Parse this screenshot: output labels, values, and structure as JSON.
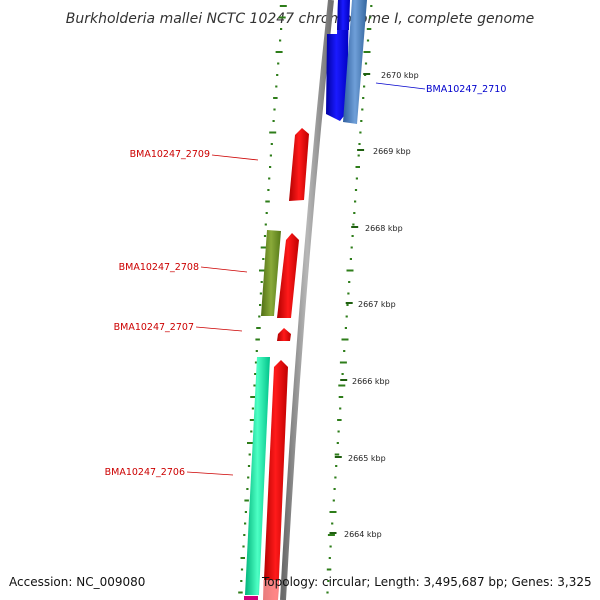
{
  "title": "Burkholderia mallei NCTC 10247 chromosome I, complete genome",
  "accession": "Accession: NC_009080",
  "summary": "Topology: circular; Length: 3,495,687 bp; Genes: 3,325",
  "ticks": [
    "2670 kbp",
    "2669 kbp",
    "2668 kbp",
    "2667 kbp",
    "2666 kbp",
    "2665 kbp",
    "2664 kbp"
  ],
  "genes": [
    {
      "label": "BMA10247_2710",
      "color": "#0000cc"
    },
    {
      "label": "BMA10247_2709",
      "color": "#cc0000"
    },
    {
      "label": "BMA10247_2708",
      "color": "#cc0000"
    },
    {
      "label": "BMA10247_2707",
      "color": "#cc0000"
    },
    {
      "label": "BMA10247_2706",
      "color": "#cc0000"
    }
  ],
  "colors": {
    "forward_cds": "#ff0000",
    "reverse_cds": "#0000ff",
    "backbone": "#888888",
    "gc_ticks": "#2e7d1a",
    "track_blue_light": "#4a7fc0",
    "track_olive": "#6b8e23",
    "track_teal": "#00e6a0"
  }
}
